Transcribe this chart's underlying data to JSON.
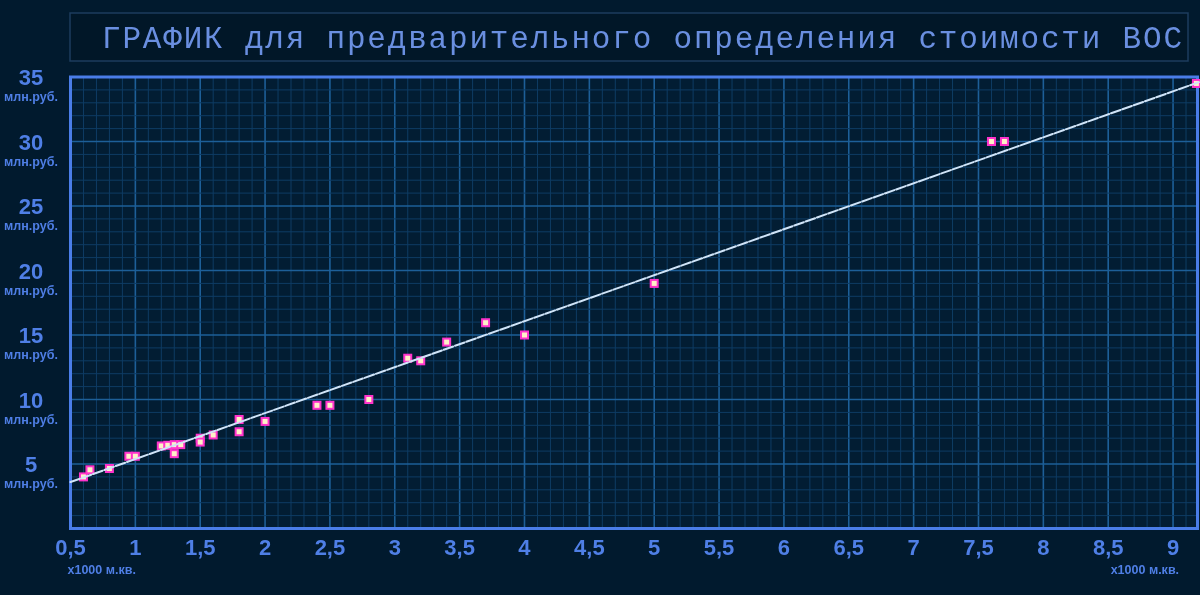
{
  "chart_data": {
    "type": "scatter",
    "title": "ГРАФИК для предварительного определения стоимости ВОС",
    "xlabel": "x1000 м.кв.",
    "ylabel": "млн.руб.",
    "xlim": [
      0.5,
      9.2
    ],
    "ylim": [
      0,
      35
    ],
    "xticks": [
      {
        "value": 0.5,
        "label": "0,5"
      },
      {
        "value": 0.6,
        "label": null
      },
      {
        "value": 0.7,
        "label": null
      },
      {
        "value": 0.8,
        "label": null
      },
      {
        "value": 0.9,
        "label": null
      },
      1,
      {
        "value": 1.1,
        "label": null
      },
      {
        "value": 1.2,
        "label": null
      },
      {
        "value": 1.3,
        "label": null
      },
      {
        "value": 1.4,
        "label": null
      },
      {
        "value": 1.5,
        "label": "1,5"
      },
      {
        "value": 1.6,
        "label": null
      },
      {
        "value": 1.7,
        "label": null
      },
      {
        "value": 1.8,
        "label": null
      },
      {
        "value": 1.9,
        "label": null
      },
      2,
      {
        "value": 2.1,
        "label": null
      },
      {
        "value": 2.2,
        "label": null
      },
      {
        "value": 2.3,
        "label": null
      },
      {
        "value": 2.4,
        "label": null
      },
      {
        "value": 2.5,
        "label": "2,5"
      },
      {
        "value": 2.6,
        "label": null
      },
      {
        "value": 2.7,
        "label": null
      },
      {
        "value": 2.8,
        "label": null
      },
      {
        "value": 2.9,
        "label": null
      },
      3,
      {
        "value": 3.1,
        "label": null
      },
      {
        "value": 3.2,
        "label": null
      },
      {
        "value": 3.3,
        "label": null
      },
      {
        "value": 3.4,
        "label": null
      },
      {
        "value": 3.5,
        "label": "3,5"
      },
      {
        "value": 3.6,
        "label": null
      },
      {
        "value": 3.7,
        "label": null
      },
      {
        "value": 3.8,
        "label": null
      },
      {
        "value": 3.9,
        "label": null
      },
      4,
      {
        "value": 4.1,
        "label": null
      },
      {
        "value": 4.2,
        "label": null
      },
      {
        "value": 4.3,
        "label": null
      },
      {
        "value": 4.4,
        "label": null
      },
      {
        "value": 4.5,
        "label": "4,5"
      },
      {
        "value": 4.6,
        "label": null
      },
      {
        "value": 4.7,
        "label": null
      },
      {
        "value": 4.8,
        "label": null
      },
      {
        "value": 4.9,
        "label": null
      },
      5,
      {
        "value": 5.1,
        "label": null
      },
      {
        "value": 5.2,
        "label": null
      },
      {
        "value": 5.3,
        "label": null
      },
      {
        "value": 5.4,
        "label": null
      },
      {
        "value": 5.5,
        "label": "5,5"
      },
      {
        "value": 5.6,
        "label": null
      },
      {
        "value": 5.7,
        "label": null
      },
      {
        "value": 5.8,
        "label": null
      },
      {
        "value": 5.9,
        "label": null
      },
      6,
      {
        "value": 6.1,
        "label": null
      },
      {
        "value": 6.2,
        "label": null
      },
      {
        "value": 6.3,
        "label": null
      },
      {
        "value": 6.4,
        "label": null
      },
      {
        "value": 6.5,
        "label": "6,5"
      },
      {
        "value": 6.6,
        "label": null
      },
      {
        "value": 6.7,
        "label": null
      },
      {
        "value": 6.8,
        "label": null
      },
      {
        "value": 6.9,
        "label": null
      },
      7,
      {
        "value": 7.1,
        "label": null
      },
      {
        "value": 7.2,
        "label": null
      },
      {
        "value": 7.3,
        "label": null
      },
      {
        "value": 7.4,
        "label": null
      },
      {
        "value": 7.5,
        "label": "7,5"
      },
      {
        "value": 7.6,
        "label": null
      },
      {
        "value": 7.7,
        "label": null
      },
      {
        "value": 7.8,
        "label": null
      },
      {
        "value": 7.9,
        "label": null
      },
      8,
      {
        "value": 8.1,
        "label": null
      },
      {
        "value": 8.2,
        "label": null
      },
      {
        "value": 8.3,
        "label": null
      },
      {
        "value": 8.4,
        "label": null
      },
      {
        "value": 8.5,
        "label": "8,5"
      },
      {
        "value": 8.6,
        "label": null
      },
      {
        "value": 8.7,
        "label": null
      },
      {
        "value": 8.8,
        "label": null
      },
      {
        "value": 8.9,
        "label": null
      },
      9,
      {
        "value": 9.1,
        "label": null
      }
    ],
    "yticks": [
      {
        "value": 1,
        "label": null
      },
      {
        "value": 2,
        "label": null
      },
      {
        "value": 3,
        "label": null
      },
      {
        "value": 4,
        "label": null
      },
      5,
      {
        "value": 6,
        "label": null
      },
      {
        "value": 7,
        "label": null
      },
      {
        "value": 8,
        "label": null
      },
      {
        "value": 9,
        "label": null
      },
      10,
      {
        "value": 11,
        "label": null
      },
      {
        "value": 12,
        "label": null
      },
      {
        "value": 13,
        "label": null
      },
      {
        "value": 14,
        "label": null
      },
      15,
      {
        "value": 16,
        "label": null
      },
      {
        "value": 17,
        "label": null
      },
      {
        "value": 18,
        "label": null
      },
      {
        "value": 19,
        "label": null
      },
      20,
      {
        "value": 21,
        "label": null
      },
      {
        "value": 22,
        "label": null
      },
      {
        "value": 23,
        "label": null
      },
      {
        "value": 24,
        "label": null
      },
      25,
      {
        "value": 26,
        "label": null
      },
      {
        "value": 27,
        "label": null
      },
      {
        "value": 28,
        "label": null
      },
      {
        "value": 29,
        "label": null
      },
      30,
      {
        "value": 31,
        "label": null
      },
      {
        "value": 32,
        "label": null
      },
      {
        "value": 33,
        "label": null
      },
      {
        "value": 34,
        "label": null
      },
      35
    ],
    "grid": true,
    "marker": "square",
    "series": [
      {
        "color": "#ff33cc",
        "x": [
          0.6,
          0.65,
          0.8,
          0.95,
          1.0,
          1.2,
          1.25,
          1.3,
          1.3,
          1.35,
          1.5,
          1.5,
          1.6,
          1.8,
          1.8,
          2.0,
          2.4,
          2.5,
          2.8,
          3.1,
          3.2,
          3.4,
          3.7,
          4.0,
          5.0,
          7.6,
          7.7,
          9.18
        ],
        "values": [
          4.0,
          4.55,
          4.65,
          5.6,
          5.6,
          6.4,
          6.45,
          6.5,
          5.8,
          6.5,
          7.0,
          6.7,
          7.25,
          8.45,
          7.5,
          8.3,
          9.55,
          9.55,
          10.0,
          13.2,
          13.0,
          14.45,
          15.95,
          15.0,
          19.0,
          30.0,
          30.0,
          34.5
        ]
      },
      {
        "type": "line",
        "color": "#d0e4f8",
        "line_style": "dashed",
        "marker": "none",
        "x": [
          0.5,
          9.2
        ],
        "values": [
          3.6,
          34.6
        ]
      }
    ]
  }
}
